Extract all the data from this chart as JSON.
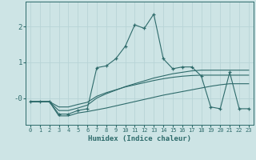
{
  "x": [
    0,
    1,
    2,
    3,
    4,
    5,
    6,
    7,
    8,
    9,
    10,
    11,
    12,
    13,
    14,
    15,
    16,
    17,
    18,
    19,
    20,
    21,
    22,
    23
  ],
  "line1": [
    -0.1,
    -0.1,
    -0.1,
    -0.45,
    -0.45,
    -0.35,
    -0.3,
    0.85,
    0.9,
    1.1,
    1.45,
    2.05,
    1.95,
    2.35,
    1.1,
    0.82,
    0.87,
    0.87,
    0.62,
    -0.25,
    -0.3,
    0.72,
    -0.3,
    -0.3
  ],
  "line2": [
    -0.1,
    -0.1,
    -0.1,
    -0.35,
    -0.35,
    -0.28,
    -0.2,
    0.0,
    0.12,
    0.22,
    0.32,
    0.4,
    0.48,
    0.56,
    0.62,
    0.68,
    0.72,
    0.76,
    0.78,
    0.78,
    0.78,
    0.78,
    0.78,
    0.78
  ],
  "line3": [
    -0.1,
    -0.1,
    -0.1,
    -0.25,
    -0.25,
    -0.18,
    -0.12,
    0.05,
    0.15,
    0.23,
    0.31,
    0.37,
    0.43,
    0.49,
    0.54,
    0.58,
    0.61,
    0.63,
    0.64,
    0.64,
    0.64,
    0.64,
    0.64,
    0.64
  ],
  "line4": [
    -0.1,
    -0.1,
    -0.1,
    -0.5,
    -0.5,
    -0.42,
    -0.38,
    -0.33,
    -0.28,
    -0.22,
    -0.16,
    -0.1,
    -0.04,
    0.02,
    0.08,
    0.13,
    0.18,
    0.23,
    0.28,
    0.33,
    0.37,
    0.4,
    0.4,
    0.4
  ],
  "bg_color": "#cde4e5",
  "line_color": "#2e6b6b",
  "grid_color_major": "#b8d4d6",
  "grid_color_minor": "#d0e5e6",
  "xlabel": "Humidex (Indice chaleur)",
  "xlim": [
    -0.5,
    23.5
  ],
  "ylim": [
    -0.75,
    2.7
  ],
  "yticks": [
    0.0,
    1.0,
    2.0
  ],
  "ytick_labels": [
    "-0",
    "1",
    "2"
  ],
  "xticks": [
    0,
    1,
    2,
    3,
    4,
    5,
    6,
    7,
    8,
    9,
    10,
    11,
    12,
    13,
    14,
    15,
    16,
    17,
    18,
    19,
    20,
    21,
    22,
    23
  ]
}
